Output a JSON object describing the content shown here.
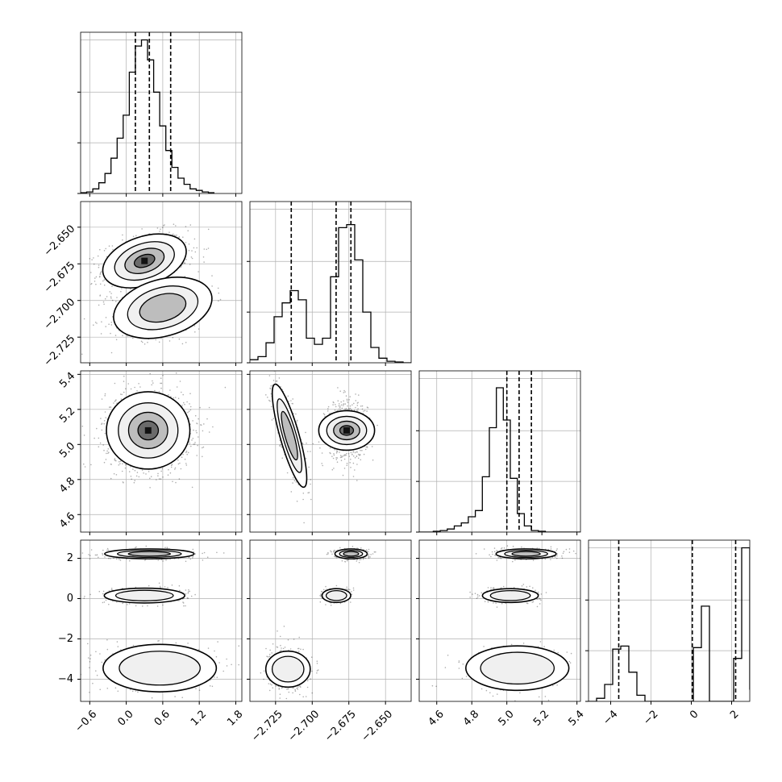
{
  "chart_data": {
    "type": "corner",
    "parameters": [
      {
        "ticks": [
          -0.6,
          0.0,
          0.6,
          1.2,
          1.8
        ],
        "tick_labels": [
          "−0.6",
          "0.0",
          "0.6",
          "1.2",
          "1.8"
        ],
        "range": [
          -0.75,
          1.9
        ]
      },
      {
        "ticks": [
          -2.725,
          -2.7,
          -2.675,
          -2.65
        ],
        "tick_labels": [
          "−2.725",
          "−2.700",
          "−2.675",
          "−2.650"
        ],
        "range": [
          -2.7425,
          -2.6325
        ]
      },
      {
        "ticks": [
          4.6,
          4.8,
          5.0,
          5.2,
          5.4
        ],
        "tick_labels": [
          "4.6",
          "4.8",
          "5.0",
          "5.2",
          "5.4"
        ],
        "range": [
          4.5,
          5.42
        ]
      },
      {
        "ticks": [
          -4,
          -2,
          0,
          2
        ],
        "tick_labels": [
          "−4",
          "−2",
          "0",
          "2"
        ],
        "range": [
          -5.1,
          2.9
        ]
      }
    ],
    "histograms": [
      {
        "param": 0,
        "bin_start": -0.75,
        "bin_width": 0.1,
        "counts": [
          0.005,
          0.01,
          0.03,
          0.07,
          0.13,
          0.23,
          0.36,
          0.51,
          0.79,
          0.96,
          1.0,
          0.87,
          0.66,
          0.44,
          0.28,
          0.17,
          0.1,
          0.06,
          0.03,
          0.02,
          0.01,
          0.005
        ],
        "quantiles": [
          0.15,
          0.38,
          0.73
        ]
      },
      {
        "param": 1,
        "bin_start": -2.7425,
        "bin_width": 0.0055,
        "counts": [
          0.02,
          0.04,
          0.13,
          0.3,
          0.39,
          0.47,
          0.41,
          0.16,
          0.12,
          0.16,
          0.56,
          0.88,
          0.9,
          0.67,
          0.33,
          0.1,
          0.03,
          0.01,
          0.005,
          0.0
        ],
        "quantiles": [
          -2.7143,
          -2.6837,
          -2.6736
        ]
      },
      {
        "param": 2,
        "bin_start": 4.5,
        "bin_width": 0.04,
        "counts": [
          0.0,
          0.0,
          0.005,
          0.01,
          0.02,
          0.04,
          0.06,
          0.1,
          0.14,
          0.36,
          0.68,
          0.94,
          0.73,
          0.35,
          0.12,
          0.04,
          0.01,
          0.005,
          0.0,
          0.0,
          0.0,
          0.0,
          0.0
        ],
        "quantiles": [
          5.0,
          5.07,
          5.14
        ]
      },
      {
        "param": 3,
        "bin_start": -5.1,
        "bin_width": 0.4,
        "counts": [
          0.0,
          0.02,
          0.11,
          0.34,
          0.36,
          0.19,
          0.04,
          0.0,
          0.0,
          0.0,
          0.0,
          0.0,
          0.0,
          0.35,
          0.62,
          0.0,
          0.0,
          0.0,
          0.28,
          1.0,
          0.08
        ],
        "quantiles": [
          -3.6,
          0.05,
          2.2
        ]
      }
    ],
    "panels_2d": [
      {
        "x_param": 0,
        "y_param": 1,
        "modes": [
          {
            "cx": 0.3,
            "cy": -2.673,
            "sx": 0.28,
            "sy": 0.0075,
            "rho": 0.35,
            "w": 0.62
          },
          {
            "cx": 0.6,
            "cy": -2.705,
            "sx": 0.33,
            "sy": 0.0085,
            "rho": 0.3,
            "w": 0.38
          }
        ]
      },
      {
        "x_param": 0,
        "y_param": 2,
        "modes": [
          {
            "cx": 0.36,
            "cy": 5.08,
            "sx": 0.28,
            "sy": 0.09,
            "rho": 0.0,
            "w": 1.0
          }
        ]
      },
      {
        "x_param": 1,
        "y_param": 2,
        "modes": [
          {
            "cx": -2.7155,
            "cy": 5.05,
            "sx": 0.0048,
            "sy": 0.12,
            "rho": -0.82,
            "w": 0.4
          },
          {
            "cx": -2.6765,
            "cy": 5.08,
            "sx": 0.0055,
            "sy": 0.065,
            "rho": 0.0,
            "w": 0.6
          }
        ]
      },
      {
        "x_param": 0,
        "y_param": 3,
        "modes": [
          {
            "cx": 0.38,
            "cy": 2.22,
            "sx": 0.3,
            "sy": 0.1,
            "rho": 0.0,
            "w": 0.38
          },
          {
            "cx": 0.3,
            "cy": 0.15,
            "sx": 0.27,
            "sy": 0.15,
            "rho": 0.0,
            "w": 0.3
          },
          {
            "cx": 0.55,
            "cy": -3.45,
            "sx": 0.38,
            "sy": 0.48,
            "rho": 0.0,
            "w": 0.32
          }
        ]
      },
      {
        "x_param": 1,
        "y_param": 3,
        "modes": [
          {
            "cx": -2.6735,
            "cy": 2.22,
            "sx": 0.0045,
            "sy": 0.1,
            "rho": 0.0,
            "w": 0.38
          },
          {
            "cx": -2.6835,
            "cy": 0.15,
            "sx": 0.004,
            "sy": 0.14,
            "rho": 0.0,
            "w": 0.3
          },
          {
            "cx": -2.7165,
            "cy": -3.5,
            "sx": 0.005,
            "sy": 0.45,
            "rho": 0.0,
            "w": 0.32
          }
        ]
      },
      {
        "x_param": 2,
        "y_param": 3,
        "modes": [
          {
            "cx": 5.11,
            "cy": 2.22,
            "sx": 0.07,
            "sy": 0.1,
            "rho": 0.0,
            "w": 0.38
          },
          {
            "cx": 5.02,
            "cy": 0.15,
            "sx": 0.065,
            "sy": 0.14,
            "rho": 0.0,
            "w": 0.3
          },
          {
            "cx": 5.06,
            "cy": -3.45,
            "sx": 0.12,
            "sy": 0.45,
            "rho": 0.0,
            "w": 0.32
          }
        ]
      }
    ],
    "colors": {
      "line": "#000000",
      "grid": "#b0b0b0",
      "points": "#000000"
    },
    "grid": true,
    "title": "",
    "legend": "none"
  }
}
